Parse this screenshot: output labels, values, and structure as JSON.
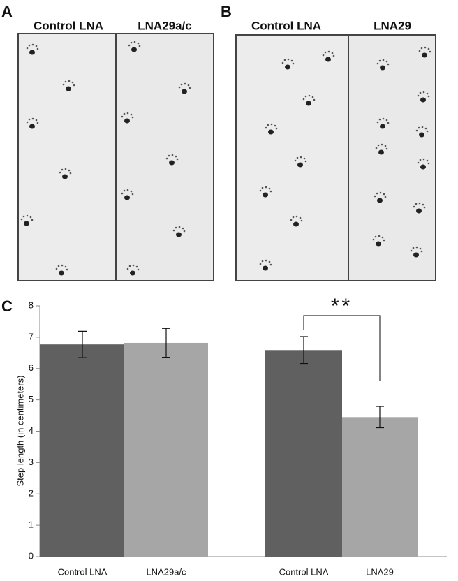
{
  "panels": [
    {
      "label": "A",
      "lanes": [
        "Control LNA",
        "LNA29a/c"
      ]
    },
    {
      "label": "B",
      "lanes": [
        "Control LNA",
        "LNA29"
      ]
    }
  ],
  "chart_data": {
    "type": "bar",
    "label": "C",
    "categories": [
      "Control LNA",
      "LNA29a/c",
      "Control LNA",
      "LNA29"
    ],
    "values": [
      6.77,
      6.82,
      6.59,
      4.45
    ],
    "errors": [
      0.42,
      0.46,
      0.43,
      0.34
    ],
    "colors": [
      "#606060",
      "#a6a6a6",
      "#606060",
      "#a6a6a6"
    ],
    "y_label": "Step length (in centimeters)",
    "ylim": [
      0,
      8
    ],
    "yticks": [
      0,
      1,
      2,
      3,
      4,
      5,
      6,
      7,
      8
    ],
    "annotation": "**"
  }
}
